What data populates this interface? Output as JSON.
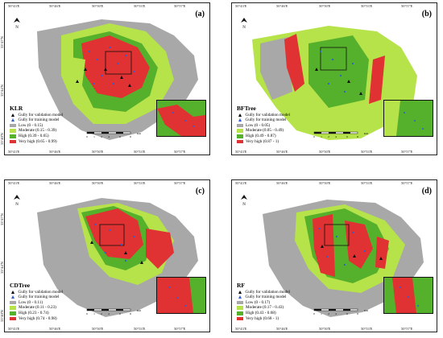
{
  "panels": [
    {
      "id": "a",
      "letter": "(a)",
      "model": "KLR",
      "legend": [
        "Gully for validation model",
        "Gully for training model",
        "Low (0 - 0.15)",
        "Moderate (0.15 - 0.39)",
        "High (0.39 - 0.65)",
        "Very high (0.65 - 0.99)"
      ]
    },
    {
      "id": "b",
      "letter": "(b)",
      "model": "BFTree",
      "legend": [
        "Gully for validation model",
        "Gully for training model",
        "Low (0 - 0.05)",
        "Moderate (0.05 - 0.49)",
        "High (0.49 - 0.87)",
        "Very high (0.87 - 1)"
      ]
    },
    {
      "id": "c",
      "letter": "(c)",
      "model": "CDTree",
      "legend": [
        "Gully for validation model",
        "Gully for training model",
        "Low (0 - 0.11)",
        "Moderate (0.11 - 0.23)",
        "High (0.23 - 0.74)",
        "Very high (0.74 - 0.98)"
      ]
    },
    {
      "id": "d",
      "letter": "(d)",
      "model": "RF",
      "legend": [
        "Gully for validation model",
        "Gully for training model",
        "Low (0 - 0.17)",
        "Moderate (0.17 - 0.43)",
        "High (0.43 - 0.68)",
        "Very high (0.68 - 1)"
      ]
    }
  ],
  "top_ticks": [
    "50°43'E",
    "50°46'E",
    "50°50'E",
    "50°53'E",
    "50°57'E"
  ],
  "bottom_ticks": [
    "50°43'E",
    "50°46'E",
    "50°50'E",
    "50°53'E",
    "50°57'E"
  ],
  "left_ticks": [
    "33°47'N",
    "33°44'N",
    "33°40'N"
  ],
  "scale_labels": [
    "0",
    "1",
    "2",
    "4",
    "6",
    "8"
  ],
  "scale_unit": "Km",
  "north_label": "N",
  "colors": {
    "low": "#a8a8a8",
    "moderate": "#b7e34a",
    "high": "#55b02c",
    "very_high": "#e03232",
    "training": "#2b5fd9",
    "validation": "#111111"
  }
}
